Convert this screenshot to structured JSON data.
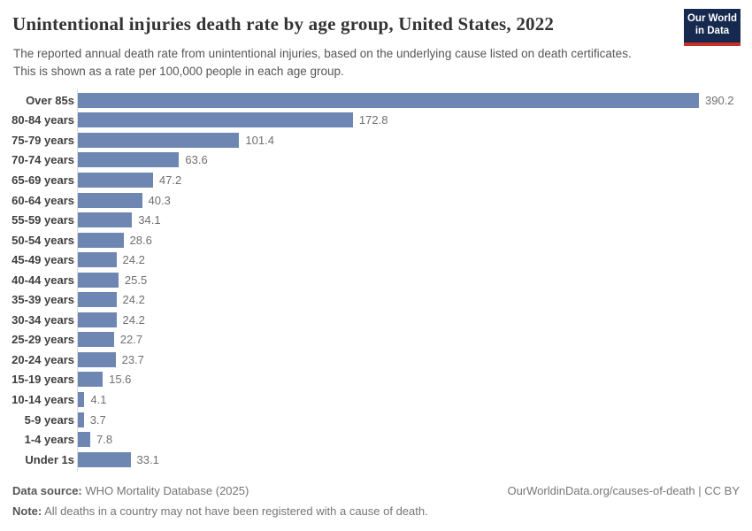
{
  "header": {
    "title": "Unintentional injuries death rate by age group, United States, 2022",
    "subtitle": "The reported annual death rate from unintentional injuries, based on the underlying cause listed on death certificates. This is shown as a rate per 100,000 people in each age group.",
    "logo_line1": "Our World",
    "logo_line2": "in Data",
    "logo_bg_color": "#16294f",
    "logo_accent_color": "#c5302b"
  },
  "chart_data": {
    "type": "bar",
    "orientation": "horizontal",
    "title": "Unintentional injuries death rate by age group, United States, 2022",
    "xlabel": "",
    "ylabel": "",
    "categories": [
      "Over 85s",
      "80-84 years",
      "75-79 years",
      "70-74 years",
      "65-69 years",
      "60-64 years",
      "55-59 years",
      "50-54 years",
      "45-49 years",
      "40-44 years",
      "35-39 years",
      "30-34 years",
      "25-29 years",
      "20-24 years",
      "15-19 years",
      "10-14 years",
      "5-9 years",
      "1-4 years",
      "Under 1s"
    ],
    "values": [
      390.2,
      172.8,
      101.4,
      63.6,
      47.2,
      40.3,
      34.1,
      28.6,
      24.2,
      25.5,
      24.2,
      24.2,
      22.7,
      23.7,
      15.6,
      4.1,
      3.7,
      7.8,
      33.1
    ],
    "xlim": [
      0,
      390.2
    ],
    "grid": false,
    "legend": false,
    "bar_color": "#6e87b2",
    "value_label_color": "#6f6f6f",
    "category_label_color": "#3f3f3f",
    "axis_line_color": "#dcdcdc"
  },
  "footer": {
    "datasource_label": "Data source:",
    "datasource_value": "WHO Mortality Database (2025)",
    "note_label": "Note:",
    "note_value": "All deaths in a country may not have been registered with a cause of death.",
    "link": "OurWorldinData.org/causes-of-death | CC BY"
  }
}
